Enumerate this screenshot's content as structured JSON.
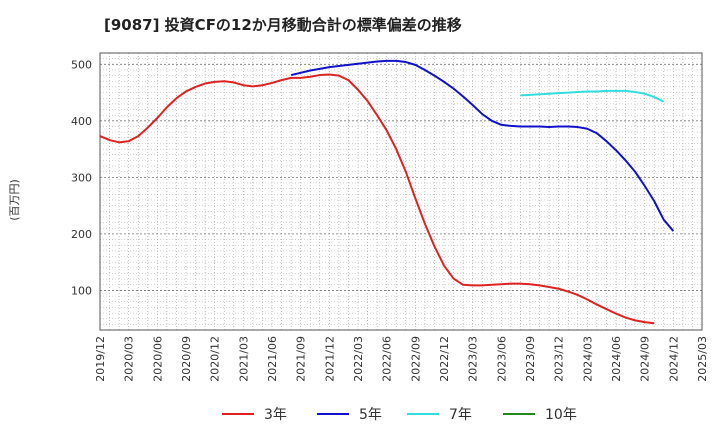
{
  "chart_data": {
    "type": "line",
    "title": "[9087]  投資CFの12か月移動合計の標準偏差の推移",
    "ylabel": "(百万円)",
    "xlabel": "",
    "ylim": [
      30,
      520
    ],
    "yticks": [
      100,
      200,
      300,
      400,
      500
    ],
    "xticks": [
      "2019/12",
      "2020/03",
      "2020/06",
      "2020/09",
      "2020/12",
      "2021/03",
      "2021/06",
      "2021/09",
      "2021/12",
      "2022/03",
      "2022/06",
      "2022/09",
      "2022/12",
      "2023/03",
      "2023/06",
      "2023/09",
      "2023/12",
      "2024/03",
      "2024/06",
      "2024/09",
      "2024/12",
      "2025/03"
    ],
    "grid": true,
    "legend_position": "bottom",
    "x_start": "2019/12",
    "series": [
      {
        "name": "3年",
        "color": "#dd2222",
        "start": "2019/12",
        "values": [
          373,
          366,
          362,
          364,
          373,
          388,
          405,
          424,
          440,
          452,
          460,
          466,
          469,
          470,
          468,
          463,
          461,
          463,
          467,
          472,
          476,
          476,
          478,
          481,
          482,
          480,
          472,
          455,
          435,
          410,
          383,
          350,
          310,
          263,
          218,
          178,
          144,
          121,
          110,
          109,
          109,
          110,
          111,
          112,
          112,
          111,
          109,
          106,
          103,
          98,
          92,
          84,
          75,
          67,
          59,
          52,
          47,
          44,
          42
        ]
      },
      {
        "name": "5年",
        "color": "#1111cc",
        "start": "2021/08",
        "values": [
          481,
          485,
          489,
          492,
          495,
          497,
          499,
          501,
          503,
          505,
          506,
          506,
          504,
          499,
          490,
          480,
          469,
          457,
          443,
          428,
          412,
          400,
          393,
          391,
          390,
          390,
          390,
          389,
          390,
          390,
          389,
          386,
          378,
          364,
          348,
          330,
          310,
          285,
          258,
          225,
          205
        ]
      },
      {
        "name": "7年",
        "color": "#33dddd",
        "start": "2023/08",
        "values": [
          445,
          446,
          447,
          448,
          449,
          450,
          451,
          452,
          452,
          453,
          453,
          453,
          451,
          448,
          442,
          434
        ]
      },
      {
        "name": "10年",
        "color": "#228822",
        "start": "",
        "values": []
      }
    ]
  }
}
